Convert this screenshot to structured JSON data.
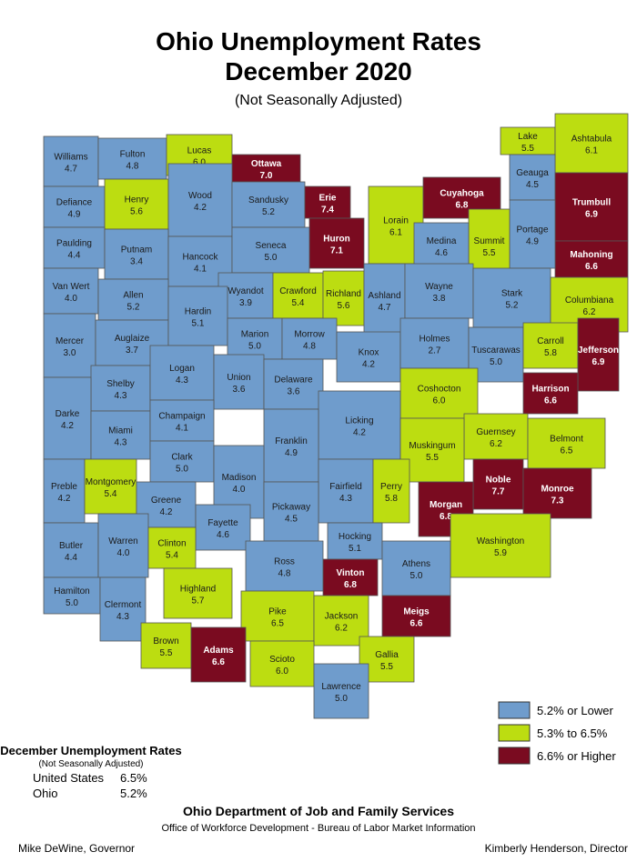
{
  "title_line1": "Ohio Unemployment Rates",
  "title_line2": "December 2020",
  "subtitle": "(Not Seasonally Adjusted)",
  "counties": [
    {
      "name": "Williams",
      "rate": "4.7",
      "color": "#6f9ccc"
    },
    {
      "name": "Fulton",
      "rate": "4.8",
      "color": "#6f9ccc"
    },
    {
      "name": "Lucas",
      "rate": "6.0",
      "color": "#bcdd11"
    },
    {
      "name": "Ottawa",
      "rate": "7.0",
      "color": "#7a0b20"
    },
    {
      "name": "Defiance",
      "rate": "4.9",
      "color": "#6f9ccc"
    },
    {
      "name": "Henry",
      "rate": "5.6",
      "color": "#bcdd11"
    },
    {
      "name": "Wood",
      "rate": "4.2",
      "color": "#6f9ccc"
    },
    {
      "name": "Sandusky",
      "rate": "5.2",
      "color": "#6f9ccc"
    },
    {
      "name": "Erie",
      "rate": "7.4",
      "color": "#7a0b20"
    },
    {
      "name": "Huron",
      "rate": "7.1",
      "color": "#7a0b20"
    },
    {
      "name": "Lorain",
      "rate": "6.1",
      "color": "#bcdd11"
    },
    {
      "name": "Cuyahoga",
      "rate": "6.8",
      "color": "#7a0b20"
    },
    {
      "name": "Lake",
      "rate": "5.5",
      "color": "#bcdd11"
    },
    {
      "name": "Ashtabula",
      "rate": "6.1",
      "color": "#bcdd11"
    },
    {
      "name": "Geauga",
      "rate": "4.5",
      "color": "#6f9ccc"
    },
    {
      "name": "Trumbull",
      "rate": "6.9",
      "color": "#7a0b20"
    },
    {
      "name": "Mahoning",
      "rate": "6.6",
      "color": "#7a0b20"
    },
    {
      "name": "Portage",
      "rate": "4.9",
      "color": "#6f9ccc"
    },
    {
      "name": "Summit",
      "rate": "5.5",
      "color": "#bcdd11"
    },
    {
      "name": "Medina",
      "rate": "4.6",
      "color": "#6f9ccc"
    },
    {
      "name": "Paulding",
      "rate": "4.4",
      "color": "#6f9ccc"
    },
    {
      "name": "Putnam",
      "rate": "3.4",
      "color": "#6f9ccc"
    },
    {
      "name": "Hancock",
      "rate": "4.1",
      "color": "#6f9ccc"
    },
    {
      "name": "Seneca",
      "rate": "5.0",
      "color": "#6f9ccc"
    },
    {
      "name": "Van Wert",
      "rate": "4.0",
      "color": "#6f9ccc"
    },
    {
      "name": "Allen",
      "rate": "5.2",
      "color": "#6f9ccc"
    },
    {
      "name": "Wyandot",
      "rate": "3.9",
      "color": "#6f9ccc"
    },
    {
      "name": "Crawford",
      "rate": "5.4",
      "color": "#bcdd11"
    },
    {
      "name": "Richland",
      "rate": "5.6",
      "color": "#bcdd11"
    },
    {
      "name": "Ashland",
      "rate": "4.7",
      "color": "#6f9ccc"
    },
    {
      "name": "Wayne",
      "rate": "3.8",
      "color": "#6f9ccc"
    },
    {
      "name": "Stark",
      "rate": "5.2",
      "color": "#6f9ccc"
    },
    {
      "name": "Columbiana",
      "rate": "6.2",
      "color": "#bcdd11"
    },
    {
      "name": "Mercer",
      "rate": "3.0",
      "color": "#6f9ccc"
    },
    {
      "name": "Auglaize",
      "rate": "3.7",
      "color": "#6f9ccc"
    },
    {
      "name": "Hardin",
      "rate": "5.1",
      "color": "#6f9ccc"
    },
    {
      "name": "Marion",
      "rate": "5.0",
      "color": "#6f9ccc"
    },
    {
      "name": "Morrow",
      "rate": "4.8",
      "color": "#6f9ccc"
    },
    {
      "name": "Knox",
      "rate": "4.2",
      "color": "#6f9ccc"
    },
    {
      "name": "Holmes",
      "rate": "2.7",
      "color": "#6f9ccc"
    },
    {
      "name": "Tuscarawas",
      "rate": "5.0",
      "color": "#6f9ccc"
    },
    {
      "name": "Carroll",
      "rate": "5.8",
      "color": "#bcdd11"
    },
    {
      "name": "Jefferson",
      "rate": "6.9",
      "color": "#7a0b20"
    },
    {
      "name": "Harrison",
      "rate": "6.6",
      "color": "#7a0b20"
    },
    {
      "name": "Shelby",
      "rate": "4.3",
      "color": "#6f9ccc"
    },
    {
      "name": "Logan",
      "rate": "4.3",
      "color": "#6f9ccc"
    },
    {
      "name": "Union",
      "rate": "3.6",
      "color": "#6f9ccc"
    },
    {
      "name": "Delaware",
      "rate": "3.6",
      "color": "#6f9ccc"
    },
    {
      "name": "Coshocton",
      "rate": "6.0",
      "color": "#bcdd11"
    },
    {
      "name": "Darke",
      "rate": "4.2",
      "color": "#6f9ccc"
    },
    {
      "name": "Miami",
      "rate": "4.3",
      "color": "#6f9ccc"
    },
    {
      "name": "Champaign",
      "rate": "4.1",
      "color": "#6f9ccc"
    },
    {
      "name": "Licking",
      "rate": "4.2",
      "color": "#6f9ccc"
    },
    {
      "name": "Guernsey",
      "rate": "6.2",
      "color": "#bcdd11"
    },
    {
      "name": "Belmont",
      "rate": "6.5",
      "color": "#bcdd11"
    },
    {
      "name": "Franklin",
      "rate": "4.9",
      "color": "#6f9ccc"
    },
    {
      "name": "Clark",
      "rate": "5.0",
      "color": "#6f9ccc"
    },
    {
      "name": "Muskingum",
      "rate": "5.5",
      "color": "#bcdd11"
    },
    {
      "name": "Preble",
      "rate": "4.2",
      "color": "#6f9ccc"
    },
    {
      "name": "Montgomery",
      "rate": "5.4",
      "color": "#bcdd11"
    },
    {
      "name": "Greene",
      "rate": "4.2",
      "color": "#6f9ccc"
    },
    {
      "name": "Madison",
      "rate": "4.0",
      "color": "#6f9ccc"
    },
    {
      "name": "Noble",
      "rate": "7.7",
      "color": "#7a0b20"
    },
    {
      "name": "Monroe",
      "rate": "7.3",
      "color": "#7a0b20"
    },
    {
      "name": "Fairfield",
      "rate": "4.3",
      "color": "#6f9ccc"
    },
    {
      "name": "Perry",
      "rate": "5.8",
      "color": "#bcdd11"
    },
    {
      "name": "Morgan",
      "rate": "6.8",
      "color": "#7a0b20"
    },
    {
      "name": "Pickaway",
      "rate": "4.5",
      "color": "#6f9ccc"
    },
    {
      "name": "Fayette",
      "rate": "4.6",
      "color": "#6f9ccc"
    },
    {
      "name": "Butler",
      "rate": "4.4",
      "color": "#6f9ccc"
    },
    {
      "name": "Warren",
      "rate": "4.0",
      "color": "#6f9ccc"
    },
    {
      "name": "Clinton",
      "rate": "5.4",
      "color": "#bcdd11"
    },
    {
      "name": "Hocking",
      "rate": "5.1",
      "color": "#6f9ccc"
    },
    {
      "name": "Washington",
      "rate": "5.9",
      "color": "#bcdd11"
    },
    {
      "name": "Ross",
      "rate": "4.8",
      "color": "#6f9ccc"
    },
    {
      "name": "Athens",
      "rate": "5.0",
      "color": "#6f9ccc"
    },
    {
      "name": "Vinton",
      "rate": "6.8",
      "color": "#7a0b20"
    },
    {
      "name": "Hamilton",
      "rate": "5.0",
      "color": "#6f9ccc"
    },
    {
      "name": "Clermont",
      "rate": "4.3",
      "color": "#6f9ccc"
    },
    {
      "name": "Highland",
      "rate": "5.7",
      "color": "#bcdd11"
    },
    {
      "name": "Meigs",
      "rate": "6.6",
      "color": "#7a0b20"
    },
    {
      "name": "Pike",
      "rate": "6.5",
      "color": "#bcdd11"
    },
    {
      "name": "Jackson",
      "rate": "6.2",
      "color": "#bcdd11"
    },
    {
      "name": "Brown",
      "rate": "5.5",
      "color": "#bcdd11"
    },
    {
      "name": "Adams",
      "rate": "6.6",
      "color": "#7a0b20"
    },
    {
      "name": "Scioto",
      "rate": "6.0",
      "color": "#bcdd11"
    },
    {
      "name": "Gallia",
      "rate": "5.5",
      "color": "#bcdd11"
    },
    {
      "name": "Lawrence",
      "rate": "5.0",
      "color": "#6f9ccc"
    }
  ],
  "legend": [
    {
      "label": "5.2% or Lower",
      "color": "#6f9ccc"
    },
    {
      "label": "5.3% to 6.5%",
      "color": "#bcdd11"
    },
    {
      "label": "6.6% or Higher",
      "color": "#7a0b20"
    }
  ],
  "summary": {
    "heading": "December Unemployment Rates",
    "subheading": "(Not Seasonally Adjusted)",
    "rows": [
      {
        "label": "United States",
        "value": "6.5%"
      },
      {
        "label": "Ohio",
        "value": "5.2%"
      }
    ]
  },
  "footer": {
    "agency": "Ohio Department of Job and Family Services",
    "office": "Office of Workforce Development - Bureau of Labor Market Information",
    "governor": "Mike DeWine, Governor",
    "director": "Kimberly Henderson, Director"
  }
}
